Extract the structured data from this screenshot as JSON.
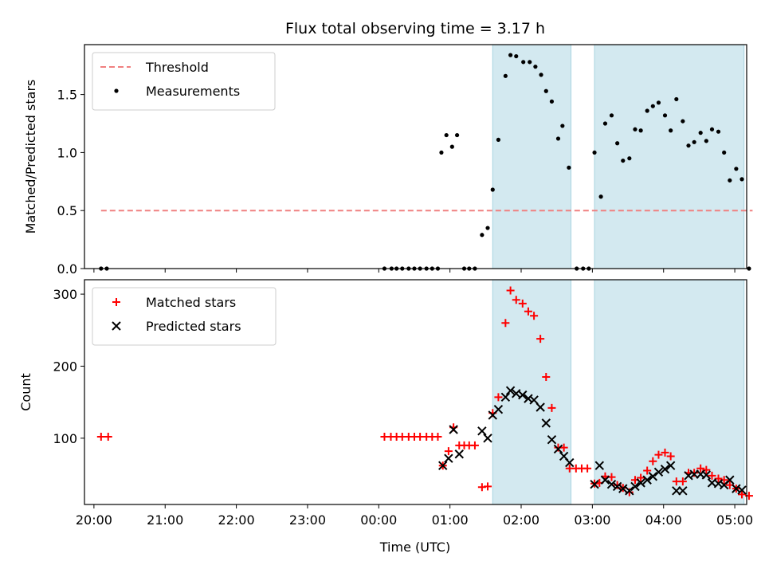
{
  "chart_data": {
    "title": "Flux total observing time = 3.17 h",
    "xlabel": "Time (UTC)",
    "xlim": [
      19.867,
      29.167
    ],
    "xticks": [
      {
        "v": 20,
        "label": "20:00"
      },
      {
        "v": 21,
        "label": "21:00"
      },
      {
        "v": 22,
        "label": "22:00"
      },
      {
        "v": 23,
        "label": "23:00"
      },
      {
        "v": 24,
        "label": "00:00"
      },
      {
        "v": 25,
        "label": "01:00"
      },
      {
        "v": 26,
        "label": "02:00"
      },
      {
        "v": 27,
        "label": "03:00"
      },
      {
        "v": 28,
        "label": "04:00"
      },
      {
        "v": 29,
        "label": "05:00"
      }
    ],
    "shaded_intervals": [
      [
        25.6,
        26.7
      ],
      [
        27.03,
        29.13
      ]
    ],
    "shade_color": "#d3e9f0",
    "panels": [
      {
        "type": "scatter",
        "ylabel": "Matched/Predicted stars",
        "ylim": [
          0,
          1.93
        ],
        "yticks": [
          0.0,
          0.5,
          1.0,
          1.5
        ],
        "ytick_labels": [
          "0.0",
          "0.5",
          "1.0",
          "1.5"
        ],
        "legend_position": "upper left",
        "threshold": {
          "name": "Threshold",
          "value": 0.5,
          "x": [
            20.1,
            29.25
          ],
          "color": "#f08080"
        },
        "series": [
          {
            "name": "Measurements",
            "color": "#000000",
            "marker": "dot",
            "points": [
              [
                20.1,
                0
              ],
              [
                20.18,
                0
              ],
              [
                24.08,
                0
              ],
              [
                24.18,
                0
              ],
              [
                24.25,
                0
              ],
              [
                24.33,
                0
              ],
              [
                24.42,
                0
              ],
              [
                24.5,
                0
              ],
              [
                24.58,
                0
              ],
              [
                24.67,
                0
              ],
              [
                24.75,
                0
              ],
              [
                24.83,
                0
              ],
              [
                24.88,
                1.0
              ],
              [
                24.95,
                1.15
              ],
              [
                25.03,
                1.05
              ],
              [
                25.1,
                1.15
              ],
              [
                25.2,
                0
              ],
              [
                25.27,
                0
              ],
              [
                25.35,
                0
              ],
              [
                25.45,
                0.29
              ],
              [
                25.53,
                0.35
              ],
              [
                25.6,
                0.68
              ],
              [
                25.68,
                1.11
              ],
              [
                25.78,
                1.66
              ],
              [
                25.85,
                1.84
              ],
              [
                25.93,
                1.83
              ],
              [
                26.03,
                1.78
              ],
              [
                26.12,
                1.78
              ],
              [
                26.2,
                1.74
              ],
              [
                26.28,
                1.67
              ],
              [
                26.35,
                1.53
              ],
              [
                26.43,
                1.44
              ],
              [
                26.52,
                1.12
              ],
              [
                26.58,
                1.23
              ],
              [
                26.67,
                0.87
              ],
              [
                26.78,
                0
              ],
              [
                26.87,
                0
              ],
              [
                26.95,
                0
              ],
              [
                27.03,
                1.0
              ],
              [
                27.12,
                0.62
              ],
              [
                27.18,
                1.25
              ],
              [
                27.27,
                1.32
              ],
              [
                27.35,
                1.08
              ],
              [
                27.43,
                0.93
              ],
              [
                27.52,
                0.95
              ],
              [
                27.6,
                1.2
              ],
              [
                27.68,
                1.19
              ],
              [
                27.77,
                1.36
              ],
              [
                27.85,
                1.4
              ],
              [
                27.93,
                1.43
              ],
              [
                28.02,
                1.32
              ],
              [
                28.1,
                1.19
              ],
              [
                28.18,
                1.46
              ],
              [
                28.27,
                1.27
              ],
              [
                28.35,
                1.06
              ],
              [
                28.43,
                1.09
              ],
              [
                28.52,
                1.17
              ],
              [
                28.6,
                1.1
              ],
              [
                28.68,
                1.2
              ],
              [
                28.77,
                1.18
              ],
              [
                28.85,
                1.0
              ],
              [
                28.93,
                0.76
              ],
              [
                29.02,
                0.86
              ],
              [
                29.1,
                0.77
              ],
              [
                29.2,
                0
              ]
            ]
          }
        ]
      },
      {
        "type": "scatter",
        "ylabel": "Count",
        "ylim": [
          8,
          320
        ],
        "yticks": [
          100,
          200,
          300
        ],
        "ytick_labels": [
          "100",
          "200",
          "300"
        ],
        "legend_position": "upper left",
        "series": [
          {
            "name": "Matched stars",
            "color": "#ff0000",
            "marker": "plus",
            "points": [
              [
                20.1,
                102
              ],
              [
                20.2,
                102
              ],
              [
                24.08,
                102
              ],
              [
                24.17,
                102
              ],
              [
                24.25,
                102
              ],
              [
                24.33,
                102
              ],
              [
                24.42,
                102
              ],
              [
                24.5,
                102
              ],
              [
                24.58,
                102
              ],
              [
                24.67,
                102
              ],
              [
                24.75,
                102
              ],
              [
                24.83,
                102
              ],
              [
                24.9,
                62
              ],
              [
                24.98,
                82
              ],
              [
                25.05,
                115
              ],
              [
                25.13,
                90
              ],
              [
                25.2,
                90
              ],
              [
                25.27,
                90
              ],
              [
                25.35,
                90
              ],
              [
                25.45,
                32
              ],
              [
                25.53,
                33
              ],
              [
                25.6,
                135
              ],
              [
                25.68,
                157
              ],
              [
                25.78,
                260
              ],
              [
                25.85,
                305
              ],
              [
                25.93,
                292
              ],
              [
                26.02,
                287
              ],
              [
                26.1,
                276
              ],
              [
                26.18,
                270
              ],
              [
                26.27,
                238
              ],
              [
                26.35,
                185
              ],
              [
                26.43,
                142
              ],
              [
                26.52,
                87
              ],
              [
                26.6,
                87
              ],
              [
                26.68,
                58
              ],
              [
                26.77,
                58
              ],
              [
                26.85,
                58
              ],
              [
                26.93,
                58
              ],
              [
                27.03,
                37
              ],
              [
                27.1,
                38
              ],
              [
                27.18,
                47
              ],
              [
                27.27,
                46
              ],
              [
                27.35,
                35
              ],
              [
                27.43,
                31
              ],
              [
                27.52,
                25
              ],
              [
                27.6,
                42
              ],
              [
                27.68,
                45
              ],
              [
                27.77,
                55
              ],
              [
                27.85,
                68
              ],
              [
                27.93,
                77
              ],
              [
                28.02,
                80
              ],
              [
                28.1,
                75
              ],
              [
                28.18,
                40
              ],
              [
                28.27,
                40
              ],
              [
                28.35,
                52
              ],
              [
                28.43,
                52
              ],
              [
                28.52,
                58
              ],
              [
                28.6,
                56
              ],
              [
                28.68,
                48
              ],
              [
                28.77,
                44
              ],
              [
                28.85,
                42
              ],
              [
                28.93,
                35
              ],
              [
                29.02,
                30
              ],
              [
                29.1,
                22
              ],
              [
                29.2,
                20
              ]
            ]
          },
          {
            "name": "Predicted stars",
            "color": "#000000",
            "marker": "x",
            "points": [
              [
                24.9,
                62
              ],
              [
                24.98,
                72
              ],
              [
                25.05,
                112
              ],
              [
                25.13,
                78
              ],
              [
                25.45,
                110
              ],
              [
                25.53,
                100
              ],
              [
                25.6,
                132
              ],
              [
                25.68,
                140
              ],
              [
                25.78,
                157
              ],
              [
                25.85,
                166
              ],
              [
                25.93,
                162
              ],
              [
                26.02,
                160
              ],
              [
                26.1,
                155
              ],
              [
                26.18,
                153
              ],
              [
                26.27,
                143
              ],
              [
                26.35,
                121
              ],
              [
                26.43,
                98
              ],
              [
                26.52,
                85
              ],
              [
                26.6,
                75
              ],
              [
                26.68,
                66
              ],
              [
                27.03,
                36
              ],
              [
                27.1,
                62
              ],
              [
                27.18,
                42
              ],
              [
                27.27,
                36
              ],
              [
                27.35,
                33
              ],
              [
                27.43,
                30
              ],
              [
                27.52,
                27
              ],
              [
                27.6,
                33
              ],
              [
                27.68,
                38
              ],
              [
                27.77,
                42
              ],
              [
                27.85,
                47
              ],
              [
                27.93,
                53
              ],
              [
                28.02,
                57
              ],
              [
                28.1,
                62
              ],
              [
                28.18,
                27
              ],
              [
                28.27,
                27
              ],
              [
                28.35,
                48
              ],
              [
                28.43,
                50
              ],
              [
                28.52,
                50
              ],
              [
                28.6,
                49
              ],
              [
                28.68,
                38
              ],
              [
                28.77,
                37
              ],
              [
                28.85,
                35
              ],
              [
                28.93,
                42
              ],
              [
                29.02,
                30
              ],
              [
                29.1,
                28
              ]
            ]
          }
        ]
      }
    ]
  }
}
